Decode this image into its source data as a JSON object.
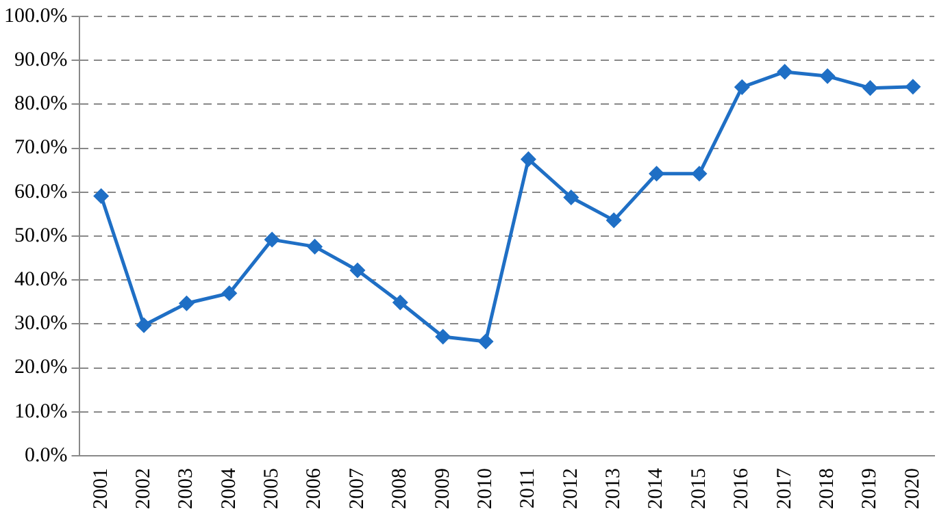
{
  "chart_data": {
    "type": "line",
    "categories": [
      "2001",
      "2002",
      "2003",
      "2004",
      "2005",
      "2006",
      "2007",
      "2008",
      "2009",
      "2010",
      "2011",
      "2012",
      "2013",
      "2014",
      "2015",
      "2016",
      "2017",
      "2018",
      "2019",
      "2020"
    ],
    "series": [
      {
        "color": "#1f6fc5",
        "values": [
          59.1,
          29.7,
          34.7,
          37.0,
          49.2,
          47.6,
          42.2,
          34.9,
          27.1,
          26.0,
          67.5,
          58.8,
          53.6,
          64.2,
          64.2,
          83.9,
          87.4,
          86.4,
          83.7,
          84.0
        ]
      }
    ],
    "ylim": [
      0,
      100
    ],
    "yticks": [
      {
        "value": 0,
        "label": "0.0%"
      },
      {
        "value": 10,
        "label": "10.0%"
      },
      {
        "value": 20,
        "label": "20.0%"
      },
      {
        "value": 30,
        "label": "30.0%"
      },
      {
        "value": 40,
        "label": "40.0%"
      },
      {
        "value": 50,
        "label": "50.0%"
      },
      {
        "value": 60,
        "label": "60.0%"
      },
      {
        "value": 70,
        "label": "70.0%"
      },
      {
        "value": 80,
        "label": "80.0%"
      },
      {
        "value": 90,
        "label": "90.0%"
      },
      {
        "value": 100,
        "label": "100.0%"
      }
    ],
    "grid": "y",
    "legend": false,
    "marker": "diamond",
    "line_style": "solid"
  }
}
